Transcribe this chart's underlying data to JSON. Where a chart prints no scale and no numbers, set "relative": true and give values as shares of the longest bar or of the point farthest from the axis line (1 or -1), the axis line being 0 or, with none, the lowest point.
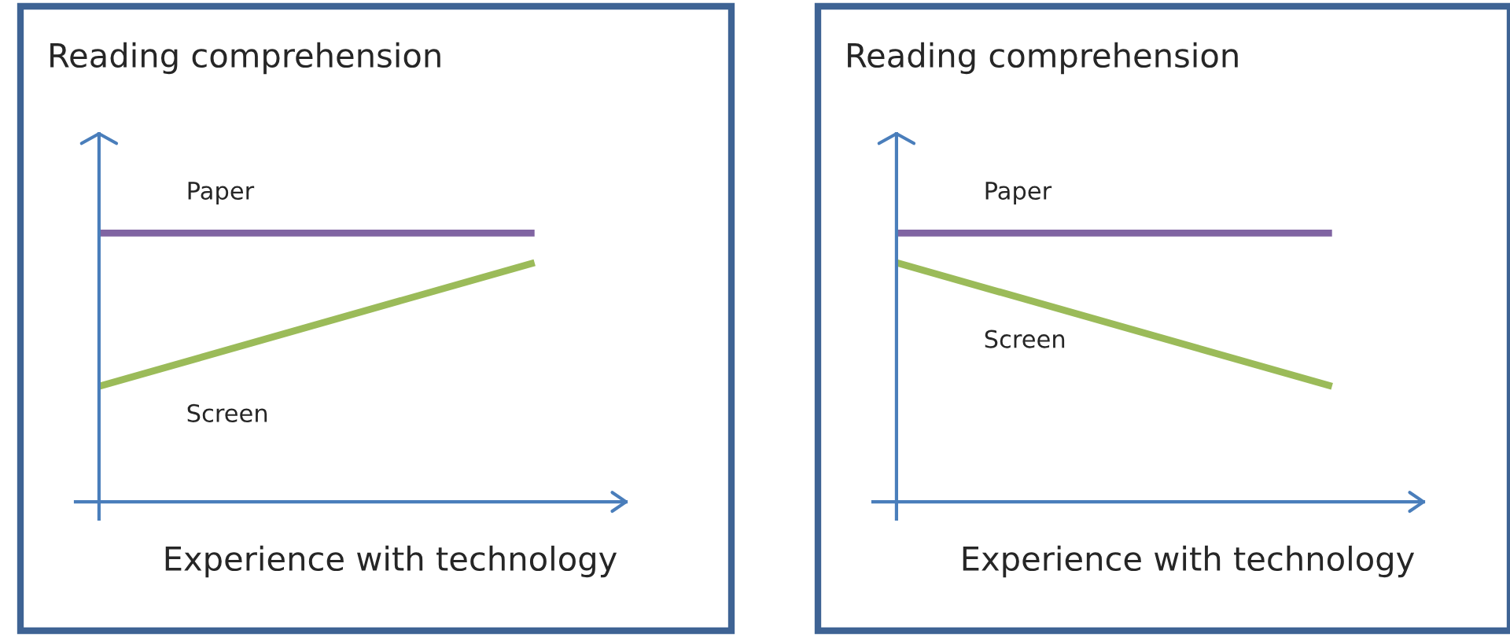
{
  "chart_data": [
    {
      "type": "line",
      "title": "Reading comprehension",
      "xlabel": "Experience with technology",
      "relative": true,
      "categories": [
        null,
        null
      ],
      "legend": false,
      "series": [
        {
          "name": "Paper",
          "color": "#8064a2",
          "values": [
            1,
            1
          ]
        },
        {
          "name": "Screen",
          "color": "#9bbb59",
          "values": [
            0.43,
            0.89
          ]
        }
      ]
    },
    {
      "type": "line",
      "title": "Reading comprehension",
      "xlabel": "Experience with technology",
      "relative": true,
      "categories": [
        null,
        null
      ],
      "legend": false,
      "series": [
        {
          "name": "Paper",
          "color": "#8064a2",
          "values": [
            1,
            1
          ]
        },
        {
          "name": "Screen",
          "color": "#9bbb59",
          "values": [
            0.89,
            0.43
          ]
        }
      ]
    }
  ]
}
